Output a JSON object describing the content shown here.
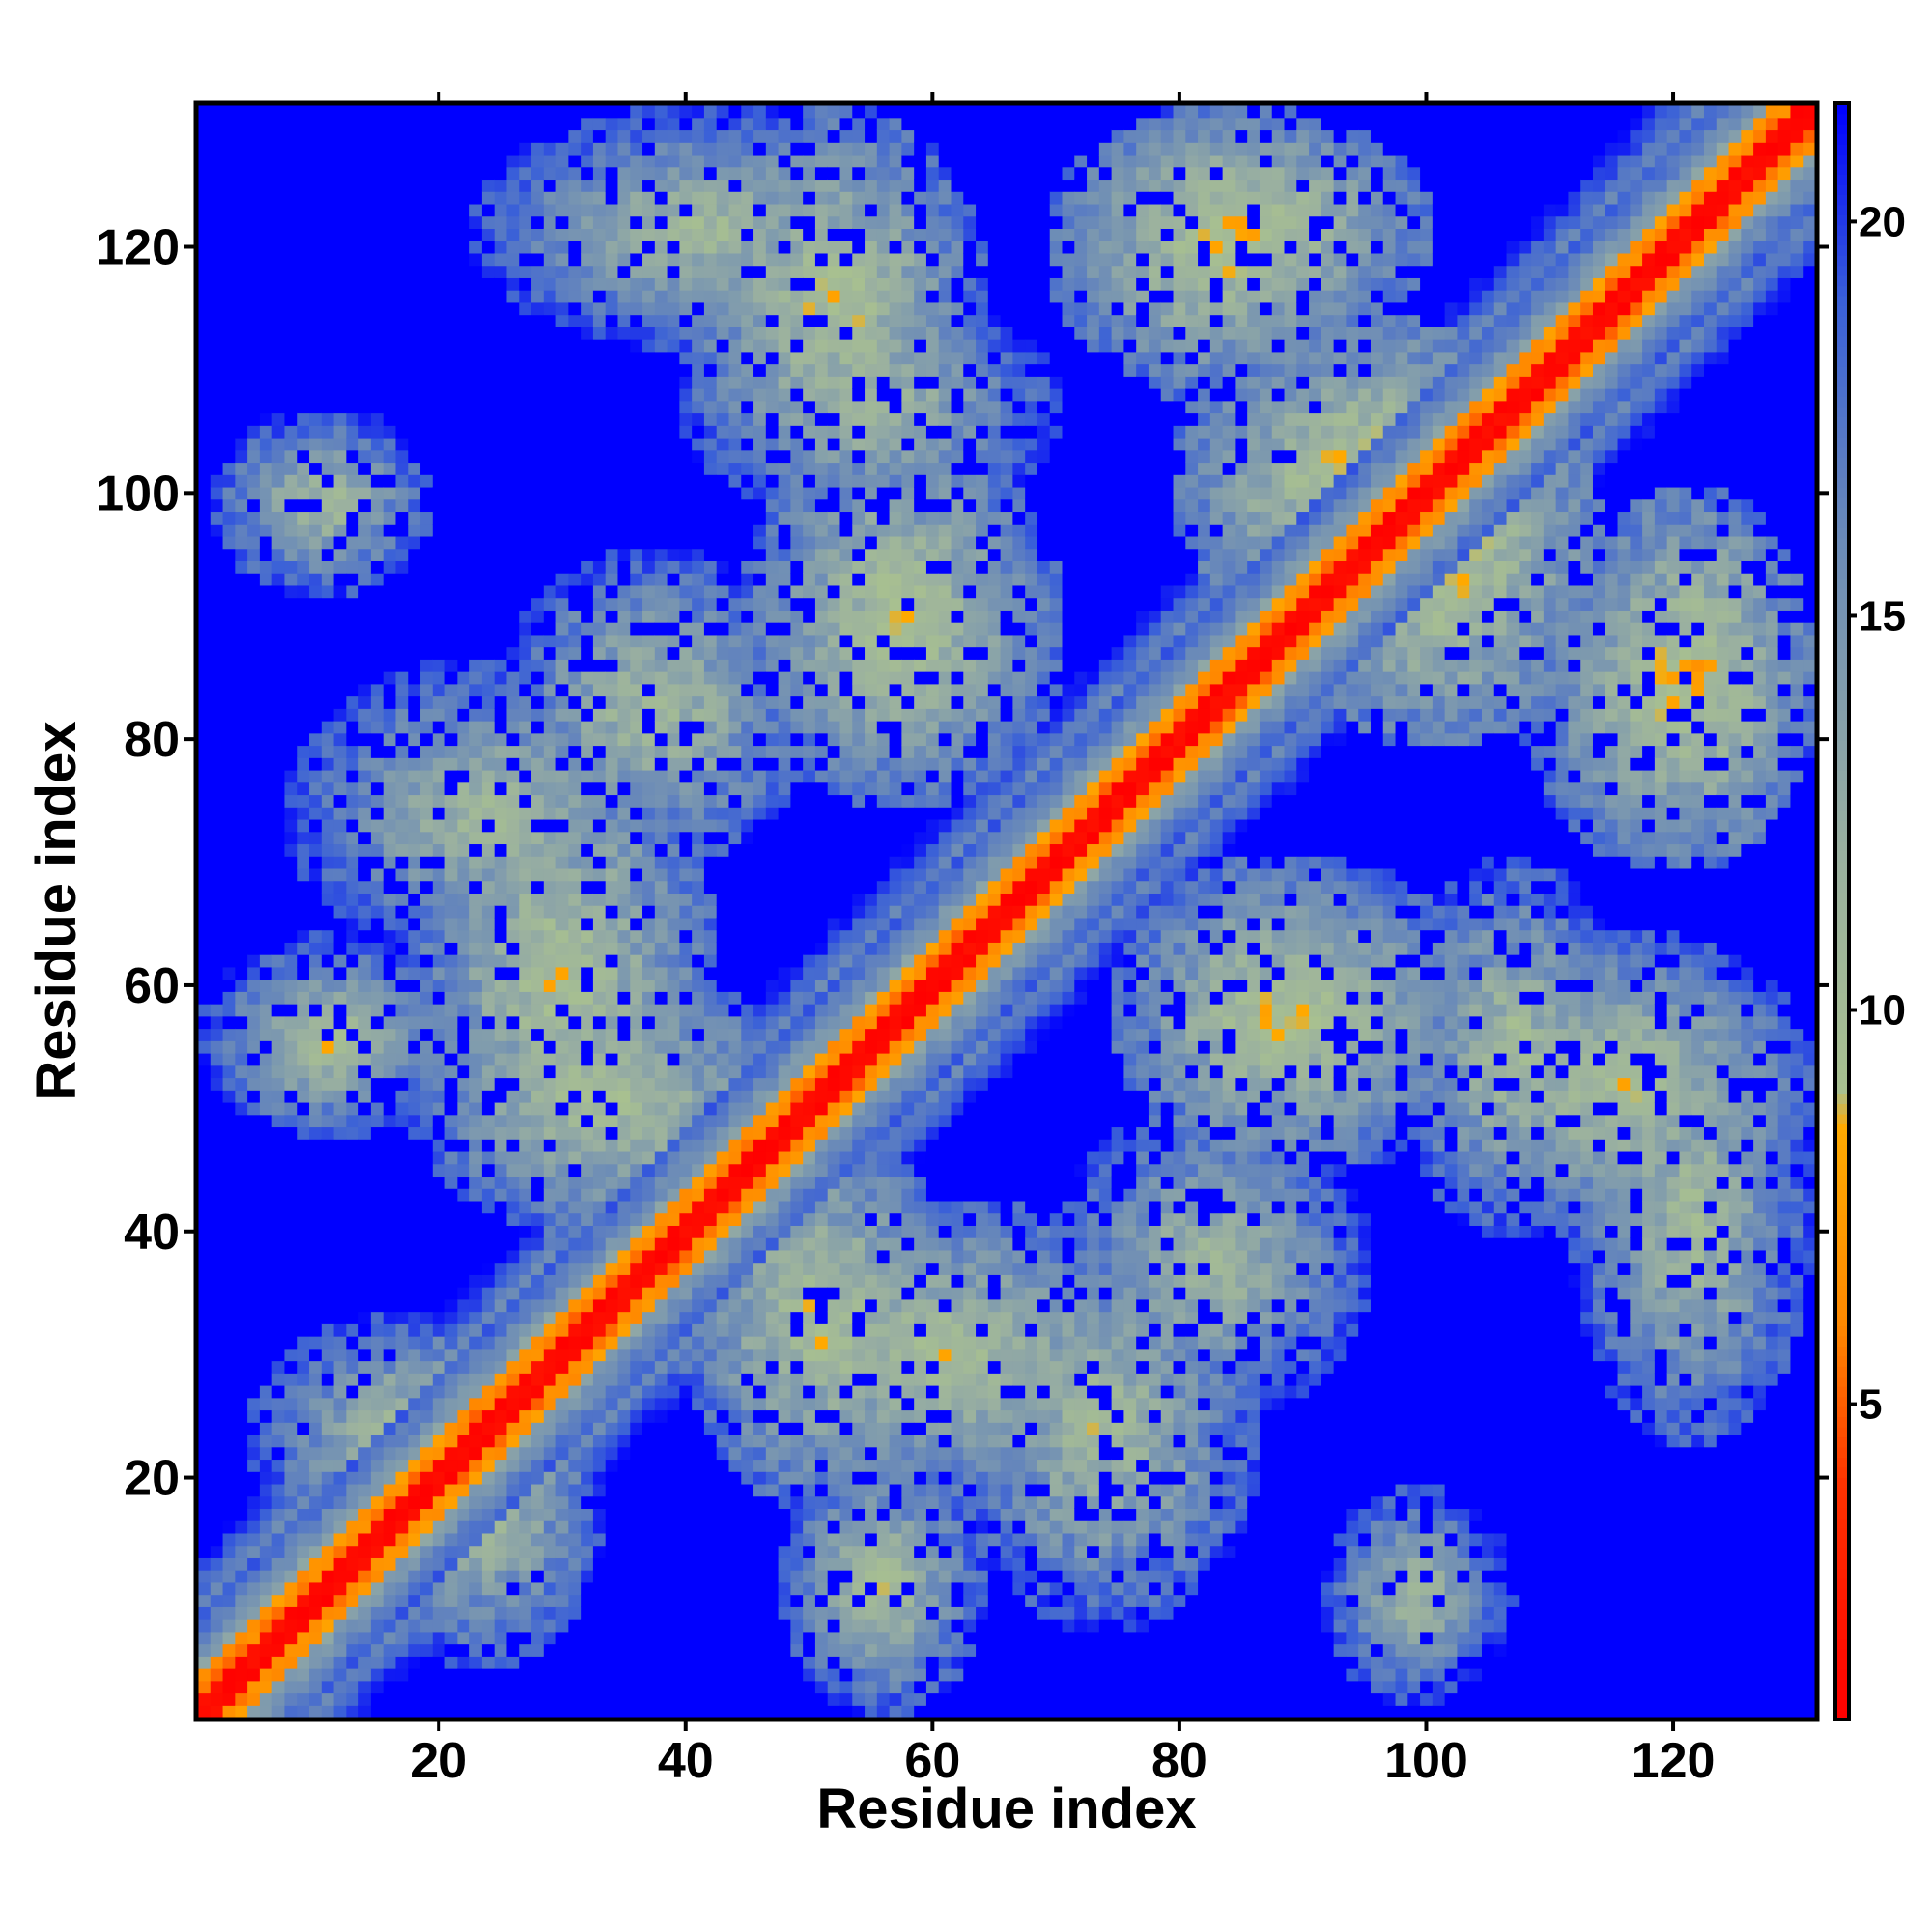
{
  "chart_data": {
    "type": "heatmap",
    "title": "",
    "xlabel": "Residue index",
    "ylabel": "Residue index",
    "n_residues": 131,
    "xlim": [
      0.5,
      131.5
    ],
    "ylim": [
      0.5,
      131.5
    ],
    "x_ticks": [
      20,
      40,
      60,
      80,
      100,
      120
    ],
    "x_tick_labels": [
      "20",
      "40",
      "60",
      "80",
      "100",
      "120"
    ],
    "y_ticks": [
      20,
      40,
      60,
      80,
      100,
      120
    ],
    "y_tick_labels": [
      "20",
      "40",
      "60",
      "80",
      "100",
      "120"
    ],
    "colorbar": {
      "range": [
        1,
        21.5
      ],
      "ticks": [
        5,
        10,
        15,
        20
      ],
      "tick_labels": [
        "5",
        "10",
        "15",
        "20"
      ],
      "colors": [
        {
          "value": 1,
          "color": "#ff0000"
        },
        {
          "value": 4,
          "color": "#ff3300"
        },
        {
          "value": 6,
          "color": "#ff8800"
        },
        {
          "value": 8.5,
          "color": "#ffaa00"
        },
        {
          "value": 9,
          "color": "#a8c090"
        },
        {
          "value": 12,
          "color": "#9ab0a0"
        },
        {
          "value": 16,
          "color": "#6a8ab8"
        },
        {
          "value": 19,
          "color": "#3a60d8"
        },
        {
          "value": 21.5,
          "color": "#0000ff"
        }
      ],
      "background_value": 21.5
    },
    "contact_regions": [
      {
        "x": [
          3,
          18
        ],
        "y": [
          93,
          107
        ],
        "min": 10
      },
      {
        "x": [
          1,
          22
        ],
        "y": [
          48,
          64
        ],
        "min": 8
      },
      {
        "x": [
          5,
          30
        ],
        "y": [
          14,
          33
        ],
        "min": 8
      },
      {
        "x": [
          8,
          40
        ],
        "y": [
          62,
          86
        ],
        "min": 8
      },
      {
        "x": [
          18,
          48
        ],
        "y": [
          40,
          62
        ],
        "min": 7
      },
      {
        "x": [
          23,
          60
        ],
        "y": [
          112,
          131
        ],
        "min": 8
      },
      {
        "x": [
          40,
          70
        ],
        "y": [
          98,
          116
        ],
        "min": 8
      },
      {
        "x": [
          45,
          70
        ],
        "y": [
          75,
          100
        ],
        "min": 7
      },
      {
        "x": [
          42,
          80
        ],
        "y": [
          18,
          42
        ],
        "min": 7
      },
      {
        "x": [
          48,
          62
        ],
        "y": [
          2,
          20
        ],
        "min": 8
      },
      {
        "x": [
          70,
          95
        ],
        "y": [
          25,
          50
        ],
        "min": 8
      },
      {
        "x": [
          70,
          100
        ],
        "y": [
          112,
          131
        ],
        "min": 6
      },
      {
        "x": [
          80,
          110
        ],
        "y": [
          88,
          114
        ],
        "min": 6
      },
      {
        "x": [
          75,
          105
        ],
        "y": [
          45,
          70
        ],
        "min": 7
      },
      {
        "x": [
          92,
          106
        ],
        "y": [
          2,
          19
        ],
        "min": 8
      },
      {
        "x": [
          100,
          131
        ],
        "y": [
          40,
          64
        ],
        "min": 7
      },
      {
        "x": [
          108,
          131
        ],
        "y": [
          70,
          96
        ],
        "min": 7
      }
    ]
  }
}
